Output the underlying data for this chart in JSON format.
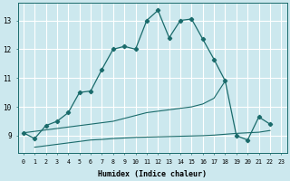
{
  "xlabel": "Humidex (Indice chaleur)",
  "background_color": "#cce8ee",
  "grid_color": "#ffffff",
  "line_color": "#1a6b6b",
  "x_values": [
    0,
    1,
    2,
    3,
    4,
    5,
    6,
    7,
    8,
    9,
    10,
    11,
    12,
    13,
    14,
    15,
    16,
    17,
    18,
    19,
    20,
    21,
    22,
    23
  ],
  "line1_y": [
    9.1,
    8.9,
    9.35,
    9.5,
    9.8,
    10.5,
    10.55,
    11.3,
    12.0,
    12.1,
    12.0,
    13.0,
    13.35,
    12.4,
    13.0,
    13.05,
    12.35,
    11.65,
    10.9,
    9.0,
    8.85,
    9.65,
    9.4,
    null
  ],
  "line2_y": [
    9.1,
    9.15,
    9.2,
    9.25,
    9.3,
    9.35,
    9.4,
    9.45,
    9.5,
    9.6,
    9.7,
    9.8,
    9.85,
    9.9,
    9.95,
    10.0,
    10.1,
    10.3,
    10.9,
    null,
    null,
    null,
    null,
    null
  ],
  "line3_y": [
    null,
    8.6,
    8.65,
    8.7,
    8.75,
    8.8,
    8.85,
    8.87,
    8.9,
    8.92,
    8.94,
    8.95,
    8.96,
    8.97,
    8.98,
    8.99,
    9.0,
    9.02,
    9.05,
    9.08,
    9.1,
    9.12,
    9.18,
    null
  ],
  "ylim": [
    8.4,
    13.6
  ],
  "yticks": [
    9,
    10,
    11,
    12,
    13
  ],
  "xlim": [
    -0.5,
    23.5
  ]
}
